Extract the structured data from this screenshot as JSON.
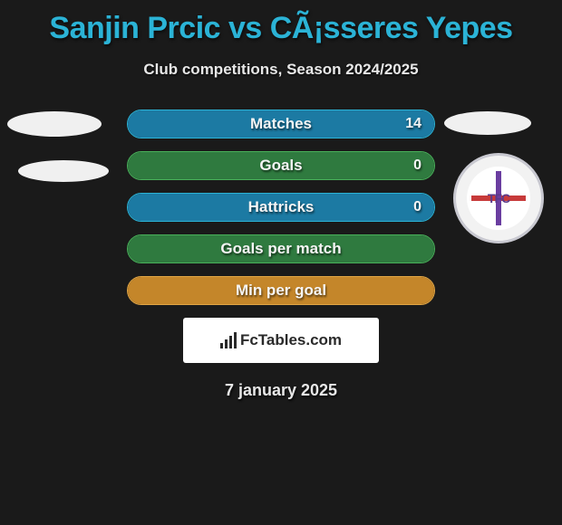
{
  "title": "Sanjin Prcic vs CÃ¡sseres Yepes",
  "subtitle": "Club competitions, Season 2024/2025",
  "date": "7 january 2025",
  "logo_text": "FcTables.com",
  "badge": {
    "text": "TFC"
  },
  "colors": {
    "title": "#2bb3d6",
    "bar_blue_fill": "#1c7aa3",
    "bar_blue_border": "#2bb3d6",
    "bar_green_fill": "#2f7a3f",
    "bar_green_border": "#49b05a",
    "bar_orange_fill": "#c4862a",
    "bar_orange_border": "#e0a545"
  },
  "bars": [
    {
      "label": "Matches",
      "value": "14",
      "style": "blue",
      "fill_pct": 100
    },
    {
      "label": "Goals",
      "value": "0",
      "style": "green",
      "fill_pct": 100
    },
    {
      "label": "Hattricks",
      "value": "0",
      "style": "blue",
      "fill_pct": 100
    },
    {
      "label": "Goals per match",
      "value": "",
      "style": "green",
      "fill_pct": 100
    },
    {
      "label": "Min per goal",
      "value": "",
      "style": "orange",
      "fill_pct": 100
    }
  ]
}
